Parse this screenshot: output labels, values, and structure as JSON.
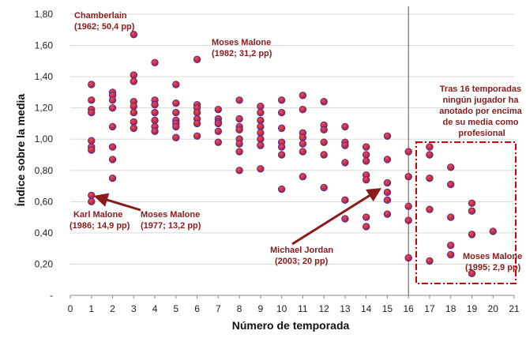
{
  "chart_data": {
    "type": "scatter",
    "xlabel": "Número de temporada",
    "ylabel": "Índice sobre la media",
    "xlim": [
      0,
      21
    ],
    "ylim": [
      0,
      1.8
    ],
    "x_ticks": [
      "0",
      "1",
      "2",
      "3",
      "4",
      "5",
      "6",
      "7",
      "8",
      "9",
      "10",
      "11",
      "12",
      "13",
      "14",
      "15",
      "16",
      "17",
      "18",
      "19",
      "20",
      "21"
    ],
    "y_ticks": [
      "-",
      "0,20",
      "0,40",
      "0,60",
      "0,80",
      "1,00",
      "1,20",
      "1,40",
      "1,60",
      "1,80"
    ],
    "grid": "horizontal",
    "vertical_marker_x": 16,
    "colors": {
      "point": "#cc2b3b",
      "point_edge": "#4a2a9a",
      "annotation": "#8b1a1a",
      "grid": "#d9d9d9"
    },
    "points": [
      [
        1,
        1.35
      ],
      [
        1,
        1.25
      ],
      [
        1,
        1.19
      ],
      [
        1,
        1.17
      ],
      [
        1,
        0.99
      ],
      [
        1,
        0.95
      ],
      [
        1,
        0.93
      ],
      [
        1,
        0.64
      ],
      [
        1,
        0.6
      ],
      [
        2,
        1.3
      ],
      [
        2,
        1.28
      ],
      [
        2,
        1.25
      ],
      [
        2,
        1.2
      ],
      [
        2,
        1.08
      ],
      [
        2,
        0.95
      ],
      [
        2,
        0.87
      ],
      [
        2,
        0.75
      ],
      [
        3,
        1.67
      ],
      [
        3,
        1.41
      ],
      [
        3,
        1.37
      ],
      [
        3,
        1.24
      ],
      [
        3,
        1.21
      ],
      [
        3,
        1.17
      ],
      [
        3,
        1.11
      ],
      [
        3,
        1.07
      ],
      [
        4,
        1.49
      ],
      [
        4,
        1.25
      ],
      [
        4,
        1.22
      ],
      [
        4,
        1.17
      ],
      [
        4,
        1.12
      ],
      [
        4,
        1.08
      ],
      [
        4,
        1.05
      ],
      [
        5,
        1.35
      ],
      [
        5,
        1.23
      ],
      [
        5,
        1.17
      ],
      [
        5,
        1.12
      ],
      [
        5,
        1.1
      ],
      [
        5,
        1.08
      ],
      [
        5,
        1.01
      ],
      [
        6,
        1.51
      ],
      [
        6,
        1.22
      ],
      [
        6,
        1.2
      ],
      [
        6,
        1.17
      ],
      [
        6,
        1.13
      ],
      [
        6,
        1.1
      ],
      [
        6,
        1.02
      ],
      [
        7,
        1.19
      ],
      [
        7,
        1.13
      ],
      [
        7,
        1.11
      ],
      [
        7,
        1.1
      ],
      [
        7,
        1.05
      ],
      [
        7,
        0.98
      ],
      [
        8,
        1.25
      ],
      [
        8,
        1.13
      ],
      [
        8,
        1.08
      ],
      [
        8,
        1.06
      ],
      [
        8,
        1.0
      ],
      [
        8,
        0.97
      ],
      [
        8,
        0.92
      ],
      [
        8,
        0.8
      ],
      [
        9,
        1.21
      ],
      [
        9,
        1.17
      ],
      [
        9,
        1.12
      ],
      [
        9,
        1.08
      ],
      [
        9,
        1.04
      ],
      [
        9,
        1.0
      ],
      [
        9,
        0.96
      ],
      [
        9,
        0.81
      ],
      [
        10,
        1.25
      ],
      [
        10,
        1.17
      ],
      [
        10,
        1.07
      ],
      [
        10,
        0.98
      ],
      [
        10,
        0.95
      ],
      [
        10,
        0.9
      ],
      [
        10,
        0.68
      ],
      [
        11,
        1.28
      ],
      [
        11,
        1.19
      ],
      [
        11,
        1.04
      ],
      [
        11,
        1.01
      ],
      [
        11,
        0.97
      ],
      [
        11,
        0.92
      ],
      [
        11,
        0.76
      ],
      [
        12,
        1.24
      ],
      [
        12,
        1.09
      ],
      [
        12,
        1.06
      ],
      [
        12,
        0.98
      ],
      [
        12,
        0.9
      ],
      [
        12,
        0.69
      ],
      [
        13,
        1.08
      ],
      [
        13,
        0.98
      ],
      [
        13,
        0.96
      ],
      [
        13,
        0.85
      ],
      [
        13,
        0.61
      ],
      [
        13,
        0.49
      ],
      [
        14,
        0.95
      ],
      [
        14,
        0.9
      ],
      [
        14,
        0.86
      ],
      [
        14,
        0.77
      ],
      [
        14,
        0.74
      ],
      [
        14,
        0.5
      ],
      [
        14,
        0.44
      ],
      [
        15,
        1.02
      ],
      [
        15,
        0.87
      ],
      [
        15,
        0.72
      ],
      [
        15,
        0.66
      ],
      [
        15,
        0.61
      ],
      [
        15,
        0.52
      ],
      [
        16,
        0.92
      ],
      [
        16,
        0.76
      ],
      [
        16,
        0.57
      ],
      [
        16,
        0.48
      ],
      [
        16,
        0.24
      ],
      [
        17,
        0.95
      ],
      [
        17,
        0.9
      ],
      [
        17,
        0.75
      ],
      [
        17,
        0.55
      ],
      [
        17,
        0.22
      ],
      [
        18,
        0.82
      ],
      [
        18,
        0.71
      ],
      [
        18,
        0.5
      ],
      [
        18,
        0.32
      ],
      [
        18,
        0.26
      ],
      [
        19,
        0.59
      ],
      [
        19,
        0.54
      ],
      [
        19,
        0.39
      ],
      [
        19,
        0.14
      ],
      [
        20,
        0.41
      ]
    ],
    "annotations": {
      "chamberlain": [
        "Chamberlain",
        "(1962; 50,4 pp)"
      ],
      "malone_1982": [
        "Moses Malone",
        "(1982; 31,2 pp)"
      ],
      "karl_malone": [
        "Karl Malone",
        "(1986; 14,9 pp)"
      ],
      "malone_1977": [
        "Moses Malone",
        "(1977; 13,2 pp)"
      ],
      "jordan": [
        "Michael Jordan",
        "(2003; 20 pp)"
      ],
      "box_note": [
        "Tras 16 temporadas",
        "ningún jugador ha",
        "anotado por encima",
        "de su media como",
        "profesional"
      ],
      "malone_1995": [
        "Moses Malone",
        "(1995; 2,9 pp)"
      ]
    }
  }
}
